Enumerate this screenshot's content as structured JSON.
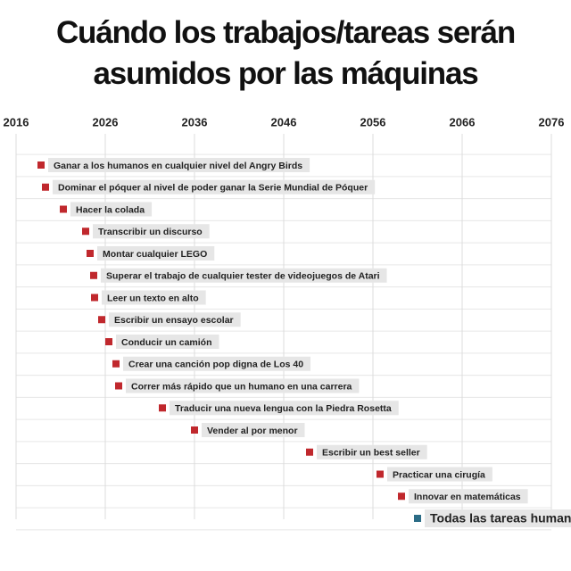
{
  "chart_data": {
    "type": "dot",
    "title": "Cuándo los trabajos/tareas serán asumidos por las máquinas",
    "xlim": [
      2016,
      2076
    ],
    "xticks": [
      2016,
      2026,
      2036,
      2046,
      2056,
      2066,
      2076
    ],
    "grid": true,
    "categories": [
      "Ganar a los humanos en cualquier nivel del Angry Birds",
      "Dominar el póquer al nivel de poder ganar la Serie Mundial de Póquer",
      "Hacer la colada",
      "Transcribir un discurso",
      "Montar cualquier LEGO",
      "Superar el trabajo de cualquier tester de videojuegos de Atari",
      "Leer un texto en alto",
      "Escribir un ensayo escolar",
      "Conducir un camión",
      "Crear una canción pop digna de Los 40",
      "Correr más rápido que un humano en una carrera",
      "Traducir una nueva lengua con la Piedra Rosetta",
      "Vender al por menor",
      "Escribir un best seller",
      "Practicar una cirugía",
      "Innovar en matemáticas",
      "Todas las tareas humanas"
    ],
    "values": [
      2018.8,
      2019.3,
      2021.3,
      2023.8,
      2024.3,
      2024.7,
      2024.8,
      2025.6,
      2026.4,
      2027.2,
      2027.5,
      2032.4,
      2036,
      2048.9,
      2056.8,
      2059.2,
      2061
    ],
    "marker_colors": [
      "#c0282d",
      "#c0282d",
      "#c0282d",
      "#c0282d",
      "#c0282d",
      "#c0282d",
      "#c0282d",
      "#c0282d",
      "#c0282d",
      "#c0282d",
      "#c0282d",
      "#c0282d",
      "#c0282d",
      "#c0282d",
      "#c0282d",
      "#c0282d",
      "#2b6c86"
    ]
  }
}
